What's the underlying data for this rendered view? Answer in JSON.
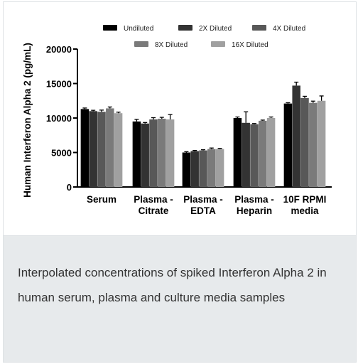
{
  "caption": "Interpolated concentrations of spiked Interferon Alpha 2 in human serum, plasma and culture media samples",
  "chart_data": {
    "type": "bar",
    "title": "",
    "xlabel": "",
    "ylabel": "Human Interferon Alpha 2 (pg/mL)",
    "ylim": [
      0,
      20000
    ],
    "yticks": [
      0,
      5000,
      10000,
      15000,
      20000
    ],
    "legend_position": "top",
    "categories": [
      [
        "Serum"
      ],
      [
        "Plasma -",
        "Citrate"
      ],
      [
        "Plasma -",
        "EDTA"
      ],
      [
        "Plasma -",
        "Heparin"
      ],
      [
        "10F RPMI",
        "media"
      ]
    ],
    "series": [
      {
        "name": "Undiluted",
        "color": "#000000",
        "values": [
          11300,
          9500,
          5000,
          10000,
          12100
        ],
        "errors": [
          150,
          300,
          120,
          150,
          120
        ]
      },
      {
        "name": "2X Diluted",
        "color": "#333333",
        "values": [
          11000,
          9200,
          5200,
          9300,
          14700
        ],
        "errors": [
          120,
          150,
          100,
          1600,
          500
        ]
      },
      {
        "name": "4X Diluted",
        "color": "#585858",
        "values": [
          10900,
          9800,
          5300,
          9100,
          12900
        ],
        "errors": [
          250,
          250,
          100,
          100,
          250
        ]
      },
      {
        "name": "8X Diluted",
        "color": "#7a7a7a",
        "values": [
          11400,
          9900,
          5500,
          9600,
          12200
        ],
        "errors": [
          200,
          200,
          150,
          100,
          250
        ]
      },
      {
        "name": "16X Diluted",
        "color": "#a0a0a0",
        "values": [
          10700,
          9800,
          5500,
          10000,
          12500
        ],
        "errors": [
          150,
          700,
          100,
          150,
          700
        ]
      }
    ]
  }
}
